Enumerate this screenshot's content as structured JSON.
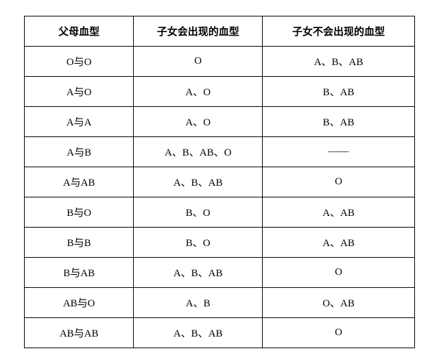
{
  "table": {
    "type": "table",
    "columns": [
      {
        "label": "父母血型",
        "class": "col1",
        "align": "center"
      },
      {
        "label": "子女会出现的血型",
        "class": "col2",
        "align": "center"
      },
      {
        "label": "子女不会出现的血型",
        "class": "col3",
        "align": "center"
      }
    ],
    "rows": [
      [
        "O与O",
        "O",
        "A、B、AB"
      ],
      [
        "A与O",
        "A、O",
        "B、AB"
      ],
      [
        "A与A",
        "A、O",
        "B、AB"
      ],
      [
        "A与B",
        "A、B、AB、O",
        "——"
      ],
      [
        "A与AB",
        "A、B、AB",
        "O"
      ],
      [
        "B与O",
        "B、O",
        "A、AB"
      ],
      [
        "B与B",
        "B、O",
        "A、AB"
      ],
      [
        "B与AB",
        "A、B、AB",
        "O"
      ],
      [
        "AB与O",
        "A、B",
        "O、AB"
      ],
      [
        "AB与AB",
        "A、B、AB",
        "O"
      ]
    ],
    "border_color": "#000000",
    "background_color": "#ffffff",
    "text_color": "#000000",
    "header_fontweight": "bold",
    "cell_fontsize": 15,
    "border_width": 1.5
  }
}
